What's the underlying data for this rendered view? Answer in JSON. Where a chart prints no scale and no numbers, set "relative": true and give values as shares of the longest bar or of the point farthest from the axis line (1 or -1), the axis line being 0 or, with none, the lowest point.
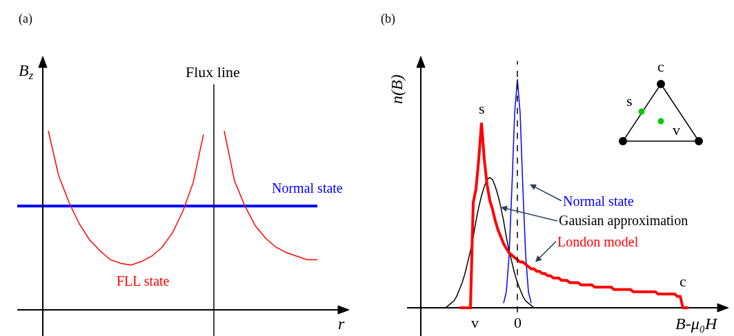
{
  "chart_data": [
    {
      "type": "line",
      "relative": true,
      "xlabel": "r",
      "ylabel": "B$_{z}$",
      "categories": [
        null,
        null,
        null,
        null,
        null,
        null,
        null,
        null,
        null,
        null,
        null,
        null,
        null,
        null,
        null,
        null,
        null,
        null,
        null,
        null,
        null,
        null,
        null,
        null,
        null,
        null,
        null,
        null,
        null,
        null,
        null
      ],
      "series": [
        {
          "name": "Normal state",
          "color": "#0000ff",
          "values": [
            0.58,
            0.58,
            0.58,
            0.58,
            0.58,
            0.58,
            0.58,
            0.58,
            0.58,
            0.58,
            0.58,
            0.58,
            0.58,
            0.58,
            0.58,
            0.58,
            0.58,
            0.58,
            0.58,
            0.58,
            0.58,
            0.58,
            0.58,
            0.58,
            0.58,
            0.58,
            0.58,
            0.58,
            0.58,
            0.58,
            null
          ]
        },
        {
          "name": "FLL state",
          "color": "#ff0000",
          "values": [
            null,
            null,
            null,
            1.0,
            0.75,
            0.6,
            0.48,
            0.39,
            0.33,
            0.28,
            0.26,
            0.25,
            0.27,
            0.3,
            0.35,
            0.43,
            0.55,
            0.71,
            0.98,
            null,
            1.0,
            0.72,
            0.58,
            0.47,
            0.4,
            0.35,
            0.32,
            0.3,
            0.28,
            0.28,
            null
          ]
        }
      ],
      "annotations": [
        "(a)",
        "Flux line"
      ]
    },
    {
      "type": "line",
      "relative": true,
      "xlabel": "B-μ₀H",
      "ylabel": "n(B)",
      "categories": [
        null,
        null,
        null,
        null,
        null,
        null,
        null,
        null,
        null,
        null,
        null,
        null,
        null,
        null,
        null,
        null,
        null,
        null,
        null,
        null,
        null,
        null,
        null,
        null,
        null,
        null,
        null,
        null,
        null,
        null,
        null,
        null,
        null,
        null,
        null,
        null,
        null,
        null,
        null,
        null,
        null,
        null,
        null,
        null,
        null,
        null,
        null,
        null,
        null,
        null,
        null,
        null,
        null,
        null,
        null,
        null,
        null,
        null,
        null,
        null,
        null,
        null,
        null,
        null,
        null,
        null,
        null,
        null,
        null,
        null,
        null,
        null,
        null,
        null,
        null,
        null,
        null,
        null,
        null,
        null,
        null,
        null,
        null,
        null,
        null,
        null,
        null,
        null,
        null,
        null,
        null
      ],
      "series": [
        {
          "name": "Normal state",
          "color": "#0000ff",
          "values": [
            null,
            null,
            null,
            null,
            null,
            null,
            null,
            null,
            null,
            null,
            null,
            null,
            null,
            null,
            null,
            null,
            null,
            null,
            null,
            null,
            null,
            null,
            null,
            0.02,
            0.07,
            0.23,
            0.52,
            0.85,
            1,
            0.85,
            0.52,
            0.23,
            0.07,
            0.02,
            null,
            null,
            null,
            null,
            null,
            null,
            null,
            null,
            null,
            null,
            null,
            null,
            null,
            null,
            null,
            null,
            null,
            null,
            null,
            null,
            null,
            null,
            null,
            null,
            null,
            null,
            null,
            null,
            null,
            null,
            null,
            null,
            null,
            null,
            null,
            null,
            null,
            null,
            null,
            null,
            null,
            null,
            null,
            null,
            null,
            null,
            null,
            null,
            null,
            null,
            null,
            null,
            null,
            null,
            null,
            null,
            null
          ]
        },
        {
          "name": "Gausian approximation",
          "color": "#000000",
          "values": [
            null,
            0,
            0,
            0.01,
            0.02,
            0.03,
            0.05,
            0.08,
            0.11,
            0.15,
            0.2,
            0.25,
            0.31,
            0.38,
            0.44,
            0.49,
            0.53,
            0.56,
            0.57,
            0.56,
            0.53,
            0.49,
            0.44,
            0.38,
            0.31,
            0.25,
            0.2,
            0.15,
            0.11,
            0.08,
            0.05,
            0.03,
            0.02,
            0.01,
            0,
            0,
            0,
            0,
            0,
            0,
            0,
            0,
            0,
            0,
            0,
            0,
            0,
            0,
            0,
            0,
            0,
            0,
            0,
            0,
            0,
            0,
            0,
            0,
            0,
            0,
            0,
            0,
            0,
            0,
            0,
            0,
            0,
            0,
            0,
            0,
            0,
            0,
            0,
            0,
            0,
            0,
            0,
            0,
            0,
            0,
            0,
            0,
            0,
            0,
            0,
            0,
            null,
            null,
            null,
            null,
            null
          ]
        },
        {
          "name": "London model",
          "color": "#ff0000",
          "values": [
            null,
            null,
            null,
            null,
            null,
            null,
            null,
            0,
            0,
            0,
            0,
            0,
            0.46,
            0.52,
            0.65,
            0.81,
            0.65,
            0.54,
            0.47,
            0.43,
            0.38,
            0.34,
            0.31,
            0.28,
            0.26,
            0.24,
            0.23,
            0.22,
            0.21,
            0.2,
            0.2,
            0.19,
            0.18,
            0.17,
            0.17,
            0.16,
            0.16,
            0.15,
            0.15,
            0.14,
            0.14,
            0.13,
            0.13,
            0.13,
            0.12,
            0.12,
            0.12,
            0.11,
            0.11,
            0.11,
            0.11,
            0.1,
            0.1,
            0.1,
            0.1,
            0.1,
            0.09,
            0.09,
            0.09,
            0.09,
            0.09,
            0.09,
            0.09,
            0.08,
            0.08,
            0.08,
            0.08,
            0.08,
            0.08,
            0.08,
            0.07,
            0.07,
            0.07,
            0.07,
            0.07,
            0.07,
            0.07,
            0.07,
            0.07,
            0.06,
            0.06,
            0.06,
            0.06,
            0.06,
            0.06,
            0.06,
            0.05,
            0.05,
            0,
            0,
            0
          ]
        }
      ],
      "annotations": [
        "(b)",
        "s",
        "c",
        "v",
        "0",
        "c",
        "s",
        "v"
      ]
    }
  ]
}
